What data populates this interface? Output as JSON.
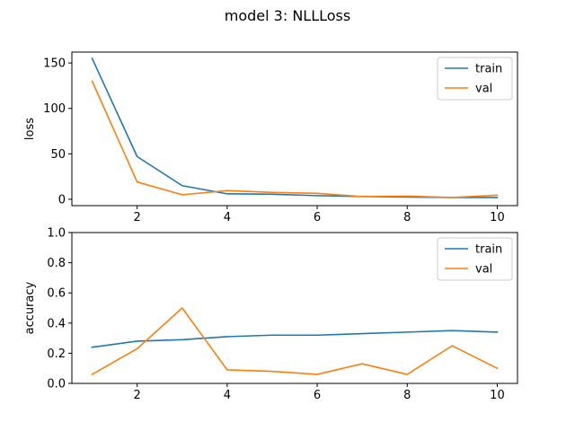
{
  "title": "model 3: NLLLoss",
  "colors": {
    "train": "#1f77b4",
    "val": "#ff7f0e",
    "axes": "#000000",
    "background": "#ffffff"
  },
  "chart_data": [
    {
      "type": "line",
      "ylabel": "loss",
      "xlabel": "",
      "xlim": [
        0.55,
        10.45
      ],
      "ylim": [
        -7,
        162
      ],
      "xticks": [
        2,
        4,
        6,
        8,
        10
      ],
      "yticks": [
        0,
        50,
        100,
        150
      ],
      "legend": "top-right",
      "x": [
        1,
        2,
        3,
        4,
        5,
        6,
        7,
        8,
        9,
        10
      ],
      "series": [
        {
          "name": "train",
          "values": [
            155,
            47,
            15,
            6,
            5.5,
            4,
            3,
            2.5,
            2,
            2
          ]
        },
        {
          "name": "val",
          "values": [
            130,
            19,
            5,
            9.5,
            7.5,
            6.5,
            3,
            3.5,
            2,
            4.5
          ]
        }
      ]
    },
    {
      "type": "line",
      "ylabel": "accuracy",
      "xlabel": "",
      "xlim": [
        0.55,
        10.45
      ],
      "ylim": [
        0,
        1
      ],
      "xticks": [
        2,
        4,
        6,
        8,
        10
      ],
      "yticks": [
        0.0,
        0.2,
        0.4,
        0.6,
        0.8,
        1.0
      ],
      "ytick_labels": [
        "0.0",
        "0.2",
        "0.4",
        "0.6",
        "0.8",
        "1.0"
      ],
      "legend": "top-right",
      "x": [
        1,
        2,
        3,
        4,
        5,
        6,
        7,
        8,
        9,
        10
      ],
      "series": [
        {
          "name": "train",
          "values": [
            0.24,
            0.28,
            0.29,
            0.31,
            0.32,
            0.32,
            0.33,
            0.34,
            0.35,
            0.34
          ]
        },
        {
          "name": "val",
          "values": [
            0.06,
            0.23,
            0.5,
            0.09,
            0.08,
            0.06,
            0.13,
            0.06,
            0.25,
            0.1
          ]
        }
      ]
    }
  ]
}
